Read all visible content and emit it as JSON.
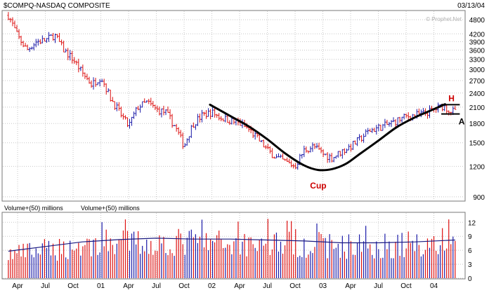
{
  "chart_data": [
    {
      "type": "ohlc",
      "title": "$COMPQ-NASDAQ COMPOSITE",
      "date_label": "03/13/04",
      "watermark": "© Prophet.Net",
      "y_scale": "log",
      "ylim": [
        870,
        5200
      ],
      "y_ticks": [
        900,
        1200,
        1500,
        1800,
        2100,
        2400,
        2700,
        3000,
        3300,
        3600,
        3900,
        4200,
        4800
      ],
      "x_ticks": [
        {
          "label": "Apr",
          "m": 1
        },
        {
          "label": "Jul",
          "m": 4
        },
        {
          "label": "Oct",
          "m": 7
        },
        {
          "label": "01",
          "m": 10
        },
        {
          "label": "Apr",
          "m": 13
        },
        {
          "label": "Jul",
          "m": 16
        },
        {
          "label": "Oct",
          "m": 19
        },
        {
          "label": "02",
          "m": 22
        },
        {
          "label": "Apr",
          "m": 25
        },
        {
          "label": "Jul",
          "m": 28
        },
        {
          "label": "Oct",
          "m": 31
        },
        {
          "label": "03",
          "m": 34
        },
        {
          "label": "Apr",
          "m": 37
        },
        {
          "label": "Jul",
          "m": 40
        },
        {
          "label": "Oct",
          "m": 43
        },
        {
          "label": "04",
          "m": 46
        }
      ],
      "price_trend": [
        [
          0,
          5000
        ],
        [
          1,
          4100
        ],
        [
          2,
          3600
        ],
        [
          3,
          3900
        ],
        [
          4,
          3950
        ],
        [
          5,
          4150
        ],
        [
          6,
          3600
        ],
        [
          7,
          3300
        ],
        [
          8,
          2900
        ],
        [
          9,
          2600
        ],
        [
          10,
          2800
        ],
        [
          11,
          2300
        ],
        [
          12,
          2000
        ],
        [
          13,
          1750
        ],
        [
          14,
          2100
        ],
        [
          15,
          2200
        ],
        [
          16,
          2050
        ],
        [
          17,
          2000
        ],
        [
          18,
          1750
        ],
        [
          19,
          1450
        ],
        [
          20,
          1800
        ],
        [
          21,
          1950
        ],
        [
          22,
          2000
        ],
        [
          23,
          1900
        ],
        [
          24,
          1850
        ],
        [
          25,
          1800
        ],
        [
          26,
          1700
        ],
        [
          27,
          1550
        ],
        [
          28,
          1400
        ],
        [
          29,
          1300
        ],
        [
          30,
          1250
        ],
        [
          31,
          1200
        ],
        [
          32,
          1400
        ],
        [
          33,
          1450
        ],
        [
          34,
          1350
        ],
        [
          35,
          1300
        ],
        [
          36,
          1380
        ],
        [
          37,
          1450
        ],
        [
          38,
          1550
        ],
        [
          39,
          1680
        ],
        [
          40,
          1730
        ],
        [
          41,
          1780
        ],
        [
          42,
          1850
        ],
        [
          43,
          1920
        ],
        [
          44,
          1950
        ],
        [
          45,
          1980
        ],
        [
          46,
          2050
        ],
        [
          47,
          2130
        ],
        [
          47.6,
          2050
        ],
        [
          48.3,
          2000
        ]
      ],
      "cup_curve": [
        [
          21.8,
          2150
        ],
        [
          24,
          1930
        ],
        [
          26,
          1750
        ],
        [
          28,
          1550
        ],
        [
          30,
          1350
        ],
        [
          32,
          1210
        ],
        [
          33.5,
          1160
        ],
        [
          35,
          1170
        ],
        [
          36.5,
          1230
        ],
        [
          38,
          1350
        ],
        [
          40,
          1530
        ],
        [
          42,
          1740
        ],
        [
          44,
          1910
        ],
        [
          46,
          2060
        ],
        [
          47.2,
          2160
        ]
      ],
      "handle": {
        "high": 2150,
        "low": 1970,
        "m_start": 46.8,
        "m_end": 48.8
      },
      "annotations": [
        {
          "text": "Cup",
          "m": 33.5,
          "value": 1000
        },
        {
          "text": "H",
          "m": 47.9,
          "value": 2280
        },
        {
          "text": "A",
          "m": 49.0,
          "value": 1830
        }
      ],
      "x_domain": [
        -0.6,
        49.3
      ]
    },
    {
      "type": "bar",
      "title": "Volume+(50) millions",
      "title_repeat": "Volume+(50) millions",
      "ylim": [
        0,
        14
      ],
      "y_ticks": [
        0,
        3,
        6,
        9,
        12
      ],
      "volume_trend": [
        [
          0,
          5.5
        ],
        [
          4,
          6.5
        ],
        [
          8,
          7.5
        ],
        [
          12,
          8.5
        ],
        [
          16,
          8.0
        ],
        [
          20,
          8.5
        ],
        [
          24,
          8.0
        ],
        [
          28,
          8.5
        ],
        [
          32,
          8.0
        ],
        [
          36,
          7.5
        ],
        [
          40,
          7.5
        ],
        [
          44,
          8.0
        ],
        [
          48.3,
          8.5
        ]
      ],
      "ma_line": [
        [
          0,
          5.8
        ],
        [
          4,
          6.8
        ],
        [
          8,
          7.8
        ],
        [
          12,
          8.3
        ],
        [
          16,
          8.6
        ],
        [
          20,
          8.4
        ],
        [
          24,
          8.4
        ],
        [
          28,
          8.2
        ],
        [
          32,
          8.0
        ],
        [
          36,
          7.6
        ],
        [
          40,
          7.6
        ],
        [
          44,
          7.8
        ],
        [
          48.3,
          8.2
        ]
      ]
    }
  ]
}
